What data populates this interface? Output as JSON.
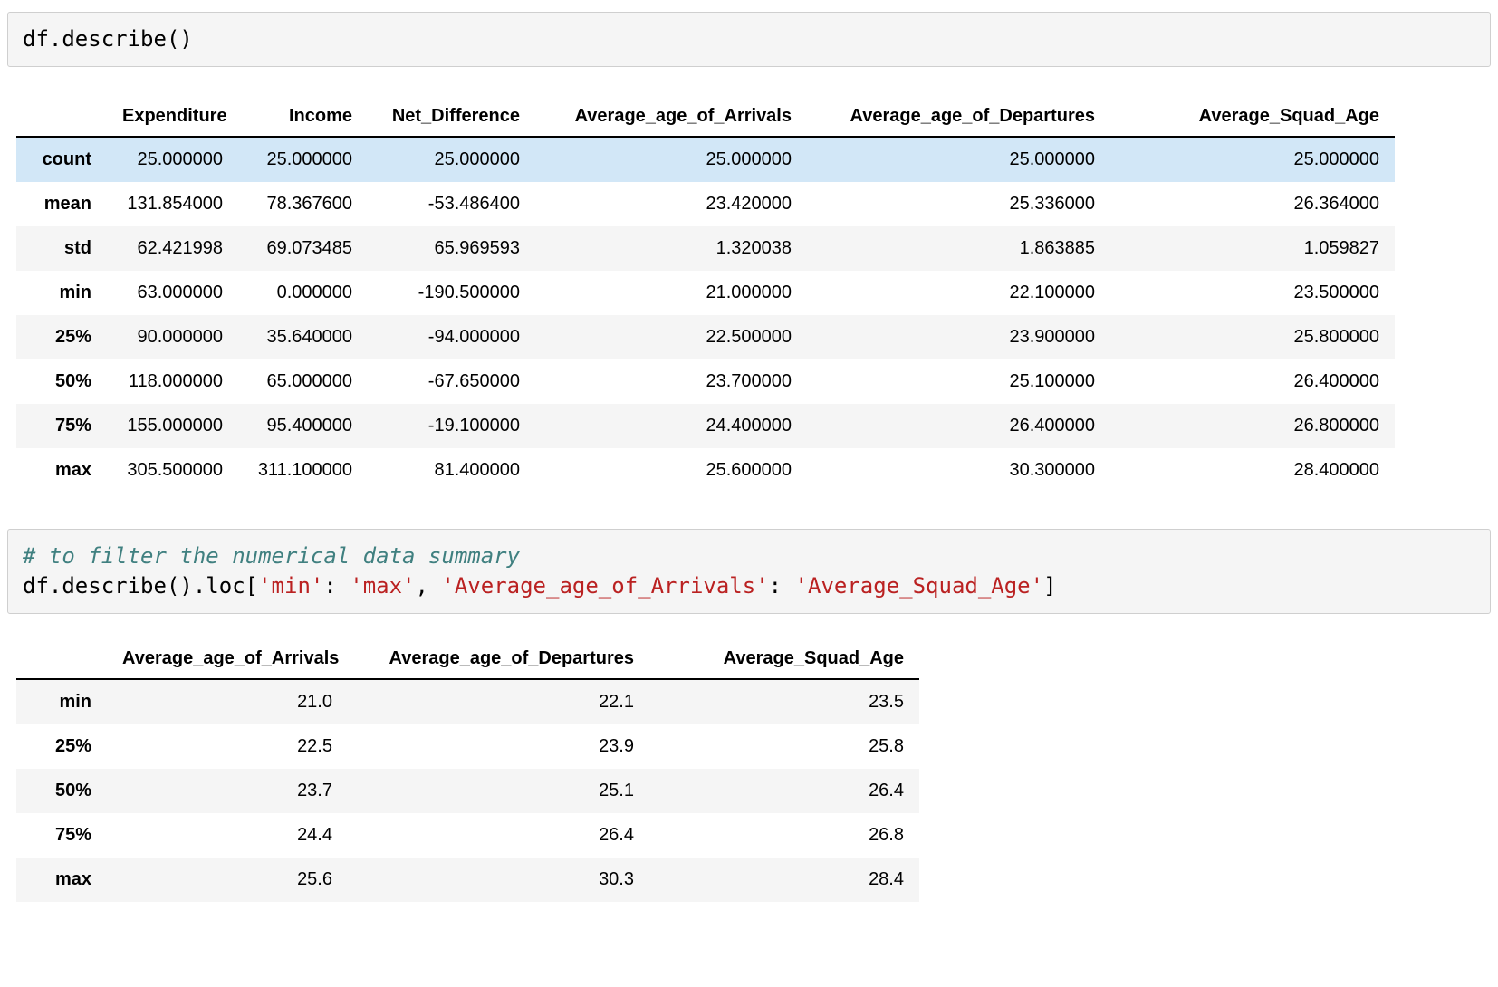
{
  "colors": {
    "code_cell_bg": "#f5f5f5",
    "code_cell_border": "#cfcfcf",
    "comment": "#408080",
    "string": "#BA2121",
    "row_stripe": "#f5f5f5",
    "row_hover_highlight": "#d2e7f7",
    "header_border": "#000000"
  },
  "cell1": {
    "lines": [
      [
        {
          "type": "plain",
          "text": "df.describe()"
        }
      ]
    ]
  },
  "table1": {
    "columns": [
      "Expenditure",
      "Income",
      "Net_Difference",
      "Average_age_of_Arrivals",
      "Average_age_of_Departures",
      "Average_Squad_Age"
    ],
    "highlighted_row": "count",
    "rows": [
      {
        "label": "count",
        "values": [
          "25.000000",
          "25.000000",
          "25.000000",
          "25.000000",
          "25.000000",
          "25.000000"
        ]
      },
      {
        "label": "mean",
        "values": [
          "131.854000",
          "78.367600",
          "-53.486400",
          "23.420000",
          "25.336000",
          "26.364000"
        ]
      },
      {
        "label": "std",
        "values": [
          "62.421998",
          "69.073485",
          "65.969593",
          "1.320038",
          "1.863885",
          "1.059827"
        ]
      },
      {
        "label": "min",
        "values": [
          "63.000000",
          "0.000000",
          "-190.500000",
          "21.000000",
          "22.100000",
          "23.500000"
        ]
      },
      {
        "label": "25%",
        "values": [
          "90.000000",
          "35.640000",
          "-94.000000",
          "22.500000",
          "23.900000",
          "25.800000"
        ]
      },
      {
        "label": "50%",
        "values": [
          "118.000000",
          "65.000000",
          "-67.650000",
          "23.700000",
          "25.100000",
          "26.400000"
        ]
      },
      {
        "label": "75%",
        "values": [
          "155.000000",
          "95.400000",
          "-19.100000",
          "24.400000",
          "26.400000",
          "26.800000"
        ]
      },
      {
        "label": "max",
        "values": [
          "305.500000",
          "311.100000",
          "81.400000",
          "25.600000",
          "30.300000",
          "28.400000"
        ]
      }
    ]
  },
  "cell2": {
    "lines": [
      [
        {
          "type": "comment",
          "text": "# to filter the numerical data summary"
        }
      ],
      [
        {
          "type": "plain",
          "text": "df.describe().loc["
        },
        {
          "type": "string",
          "text": "'min'"
        },
        {
          "type": "plain",
          "text": ": "
        },
        {
          "type": "string",
          "text": "'max'"
        },
        {
          "type": "plain",
          "text": ", "
        },
        {
          "type": "string",
          "text": "'Average_age_of_Arrivals'"
        },
        {
          "type": "plain",
          "text": ": "
        },
        {
          "type": "string",
          "text": "'Average_Squad_Age'"
        },
        {
          "type": "plain",
          "text": "]"
        }
      ]
    ]
  },
  "table2": {
    "columns": [
      "Average_age_of_Arrivals",
      "Average_age_of_Departures",
      "Average_Squad_Age"
    ],
    "highlighted_row": null,
    "rows": [
      {
        "label": "min",
        "values": [
          "21.0",
          "22.1",
          "23.5"
        ]
      },
      {
        "label": "25%",
        "values": [
          "22.5",
          "23.9",
          "25.8"
        ]
      },
      {
        "label": "50%",
        "values": [
          "23.7",
          "25.1",
          "26.4"
        ]
      },
      {
        "label": "75%",
        "values": [
          "24.4",
          "26.4",
          "26.8"
        ]
      },
      {
        "label": "max",
        "values": [
          "25.6",
          "30.3",
          "28.4"
        ]
      }
    ]
  }
}
